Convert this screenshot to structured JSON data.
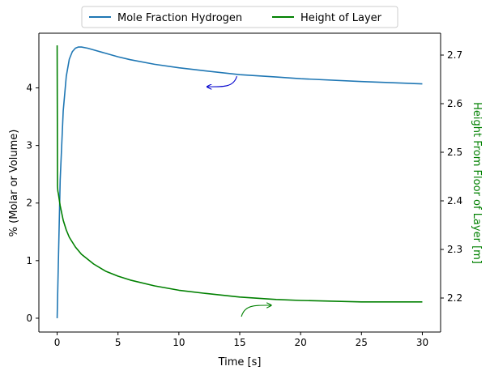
{
  "chart_data": {
    "type": "line",
    "xlabel": "Time [s]",
    "ylabel_left": "% (Molar or Volume)",
    "ylabel_right": "Height From Floor of Layer  [m]",
    "xlim": [
      -1.5,
      31.5
    ],
    "ylim_left": [
      -0.24,
      4.95
    ],
    "ylim_right": [
      2.13,
      2.745
    ],
    "xticks": [
      0,
      5,
      10,
      15,
      20,
      25,
      30
    ],
    "yticks_left": [
      0,
      1,
      2,
      3,
      4
    ],
    "yticks_right": [
      2.2,
      2.3,
      2.4,
      2.5,
      2.6,
      2.7
    ],
    "grid": false,
    "legend_placement": "top-center, above plot",
    "series": [
      {
        "name": "Mole Fraction Hydrogen",
        "axis": "left",
        "color": "#1f77b4",
        "x": [
          0,
          0.25,
          0.5,
          0.75,
          1.0,
          1.25,
          1.5,
          1.75,
          2.0,
          2.5,
          3,
          4,
          5,
          6,
          8,
          10,
          12,
          15,
          18,
          20,
          25,
          30
        ],
        "y": [
          0.0,
          2.4,
          3.6,
          4.2,
          4.5,
          4.63,
          4.69,
          4.71,
          4.71,
          4.69,
          4.66,
          4.6,
          4.54,
          4.49,
          4.41,
          4.35,
          4.3,
          4.23,
          4.19,
          4.16,
          4.11,
          4.07
        ]
      },
      {
        "name": "Height of Layer",
        "axis": "right",
        "color": "#008000",
        "x": [
          0,
          0.03,
          0.06,
          0.1,
          0.25,
          0.5,
          0.75,
          1.0,
          1.5,
          2,
          3,
          4,
          5,
          6,
          8,
          10,
          12,
          15,
          18,
          20,
          25,
          30
        ],
        "y": [
          2.72,
          2.43,
          2.42,
          2.415,
          2.39,
          2.36,
          2.34,
          2.325,
          2.305,
          2.29,
          2.27,
          2.255,
          2.245,
          2.237,
          2.225,
          2.216,
          2.21,
          2.202,
          2.197,
          2.195,
          2.192,
          2.192
        ]
      }
    ],
    "annotations": [
      {
        "kind": "arrow",
        "target_axis": "left",
        "color": "#0000cd",
        "x": 12.3,
        "y": 4.02
      },
      {
        "kind": "arrow",
        "target_axis": "right",
        "color": "#008000",
        "x": 17.6,
        "y": 2.185
      }
    ]
  }
}
